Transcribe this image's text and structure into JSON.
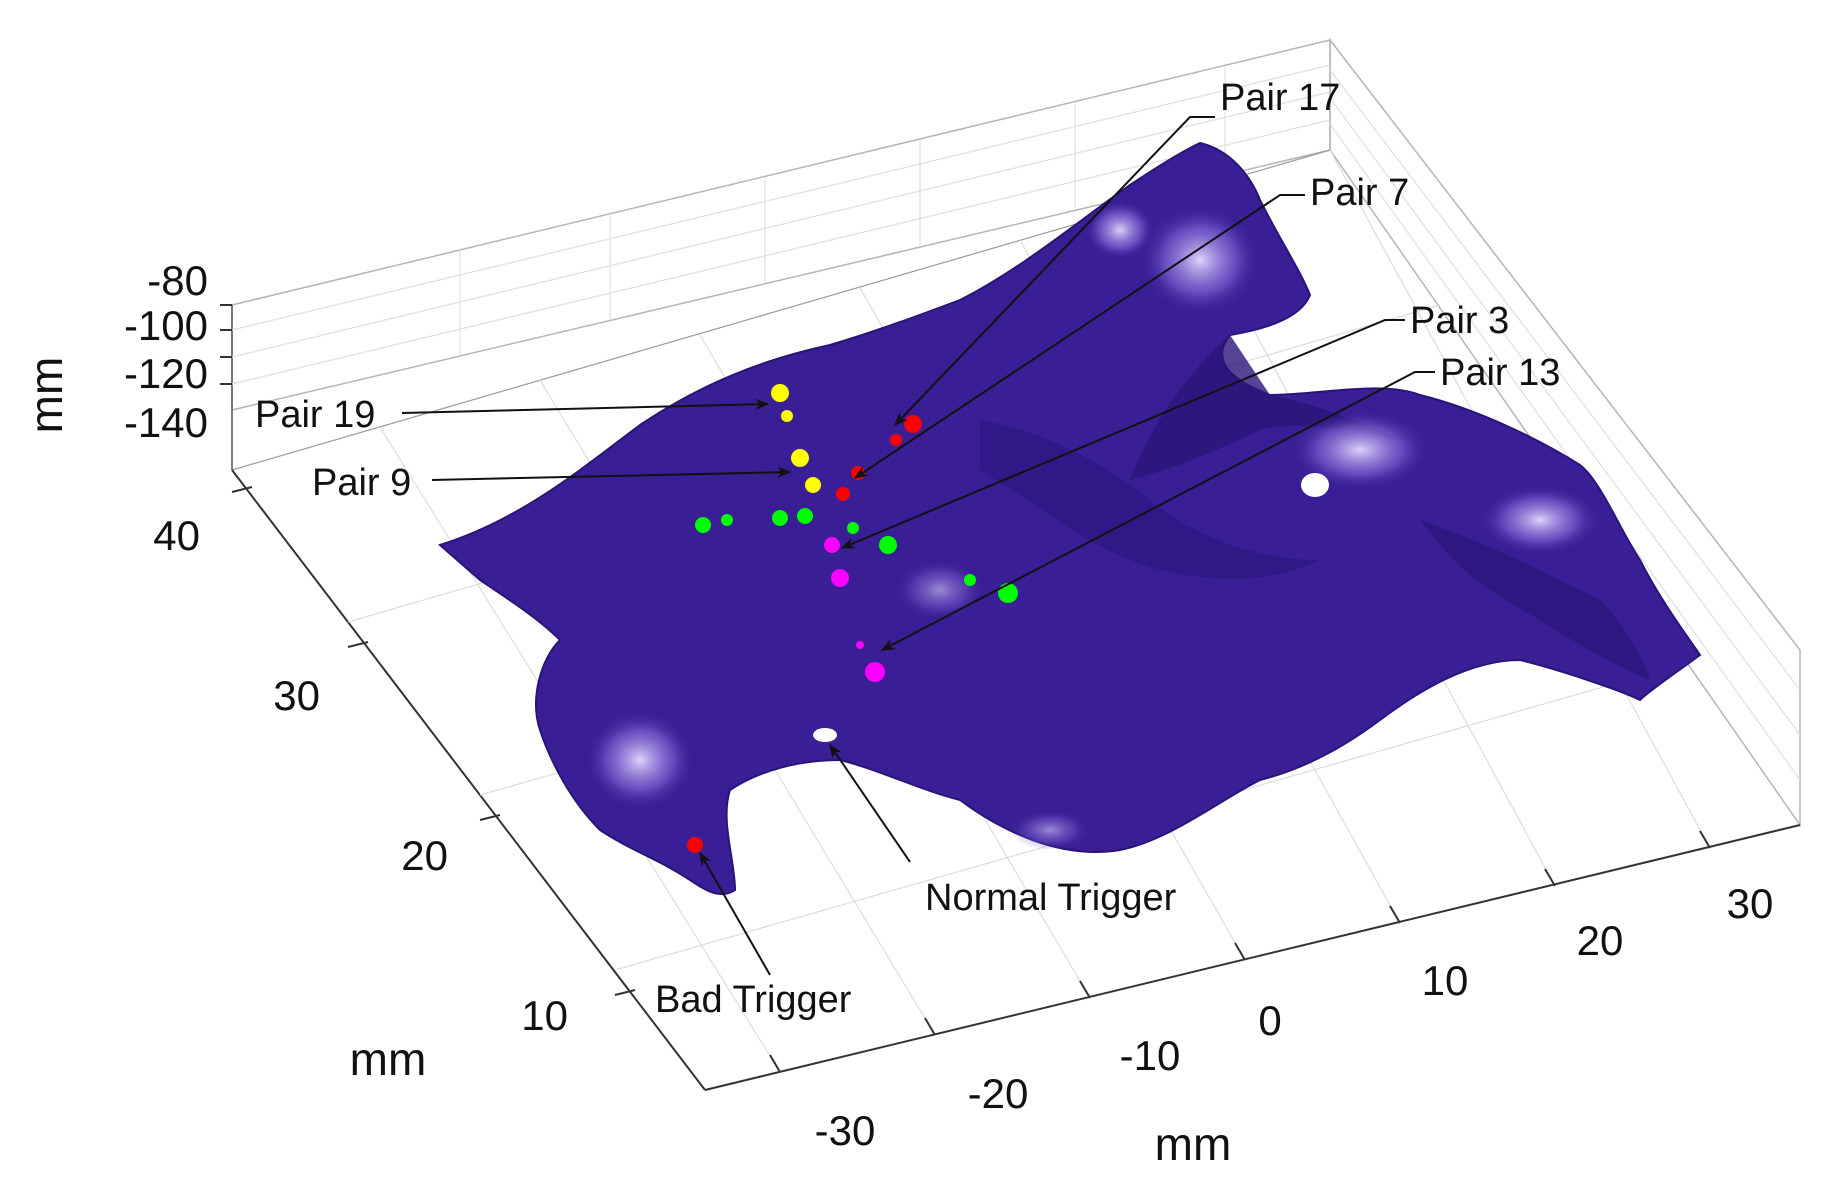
{
  "axes": {
    "z_label": "mm",
    "x_label": "mm",
    "y_label": "mm",
    "z_ticks": [
      "-80",
      "-100",
      "-120",
      "-140"
    ],
    "y_ticks": [
      "40",
      "30",
      "20",
      "10"
    ],
    "x_ticks": [
      "-30",
      "-20",
      "-10",
      "0",
      "10",
      "20",
      "30"
    ]
  },
  "annotations": {
    "pair17": "Pair 17",
    "pair7": "Pair 7",
    "pair3": "Pair 3",
    "pair13": "Pair 13",
    "pair19": "Pair 19",
    "pair9": "Pair 9",
    "normal_trigger": "Normal Trigger",
    "bad_trigger": "Bad Trigger"
  },
  "colors": {
    "surface": "#3a1e96",
    "surface_dark": "#2a1478",
    "highlight": "#c8b8f4",
    "pair17": "#ff0000",
    "pair7": "#ff0000",
    "pair3": "#ff00ff",
    "pair13": "#ff00ff",
    "pair19": "#ffff00",
    "pair9": "#ffff00",
    "green_pairs": "#00ff00",
    "bad_trigger": "#ff0000",
    "normal_trigger": "#ffffff"
  }
}
